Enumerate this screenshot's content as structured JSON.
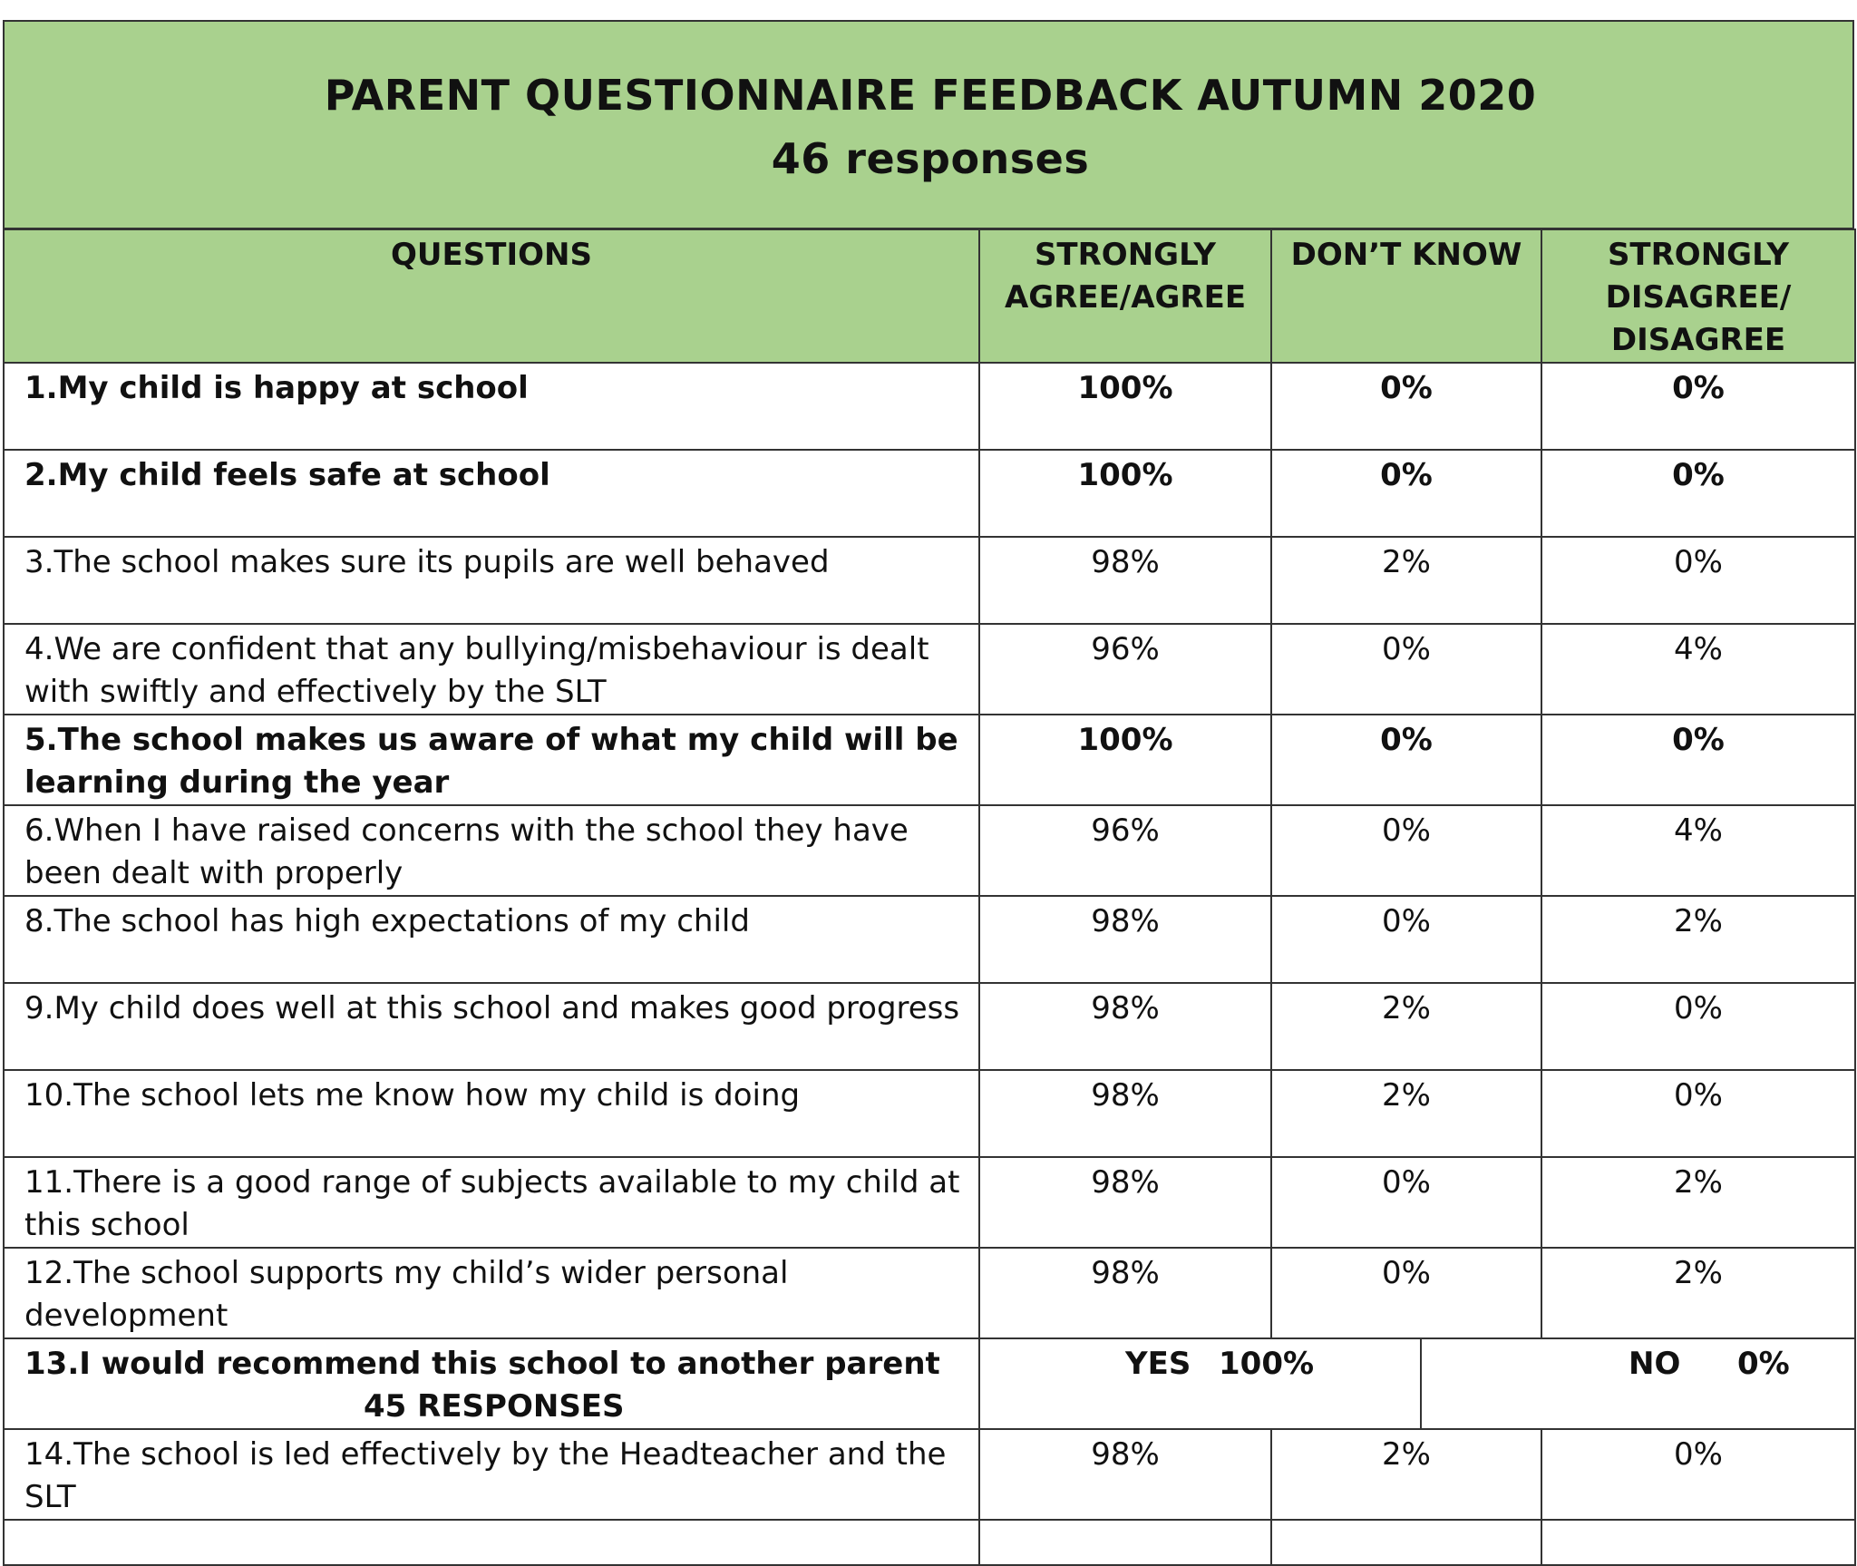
{
  "header": {
    "title": "PARENT QUESTIONNAIRE FEEDBACK AUTUMN 2020",
    "subtitle": "46 responses",
    "background_color": "#a9d18e"
  },
  "table": {
    "columns": [
      "QUESTIONS",
      "STRONGLY AGREE/AGREE",
      "DON’T KNOW",
      "STRONGLY DISAGREE/ DISAGREE"
    ],
    "column_lines": {
      "agree": [
        "STRONGLY",
        "AGREE/AGREE"
      ],
      "disagree": [
        "STRONGLY",
        "DISAGREE/",
        "DISAGREE"
      ]
    },
    "rows": [
      {
        "question": "1.My child is happy at school",
        "agree": "100%",
        "dont_know": "0%",
        "disagree": "0%",
        "bold": true
      },
      {
        "question": "2.My child feels safe at school",
        "agree": "100%",
        "dont_know": "0%",
        "disagree": "0%",
        "bold": true
      },
      {
        "question": "3.The school makes sure its pupils are well behaved",
        "agree": "98%",
        "dont_know": "2%",
        "disagree": "0%",
        "bold": false
      },
      {
        "question": "4.We are confident that any bullying/misbehaviour is dealt with swiftly and effectively by the SLT",
        "agree": "96%",
        "dont_know": "0%",
        "disagree": "4%",
        "bold": false
      },
      {
        "question": "5.The school makes us aware of what my child will be learning during the year",
        "agree": "100%",
        "dont_know": "0%",
        "disagree": "0%",
        "bold": true
      },
      {
        "question": "6.When I have raised concerns with the school they have been dealt with properly",
        "agree": "96%",
        "dont_know": "0%",
        "disagree": "4%",
        "bold": false
      },
      {
        "question": "8.The school has high expectations of my child",
        "agree": "98%",
        "dont_know": "0%",
        "disagree": "2%",
        "bold": false
      },
      {
        "question": "9.My child does well at this school and makes good progress",
        "agree": "98%",
        "dont_know": "2%",
        "disagree": "0%",
        "bold": false
      },
      {
        "question": "10.The school lets me know how my child is doing",
        "agree": "98%",
        "dont_know": "2%",
        "disagree": "0%",
        "bold": false
      },
      {
        "question": "11.There is a good range of subjects available to my child at this school",
        "agree": "98%",
        "dont_know": "0%",
        "disagree": "2%",
        "bold": false
      },
      {
        "question": "12.The school supports my child’s wider personal development",
        "agree": "98%",
        "dont_know": "0%",
        "disagree": "2%",
        "bold": false
      }
    ],
    "row13": {
      "question": "13.I would recommend this school to another parent",
      "sub": "45 RESPONSES",
      "yes_label": "YES",
      "yes_value": "100%",
      "no_label": "NO",
      "no_value": "0%"
    },
    "row14": {
      "question": "14.The school is led effectively by the Headteacher and the SLT",
      "agree": "98%",
      "dont_know": "2%",
      "disagree": "0%"
    }
  }
}
